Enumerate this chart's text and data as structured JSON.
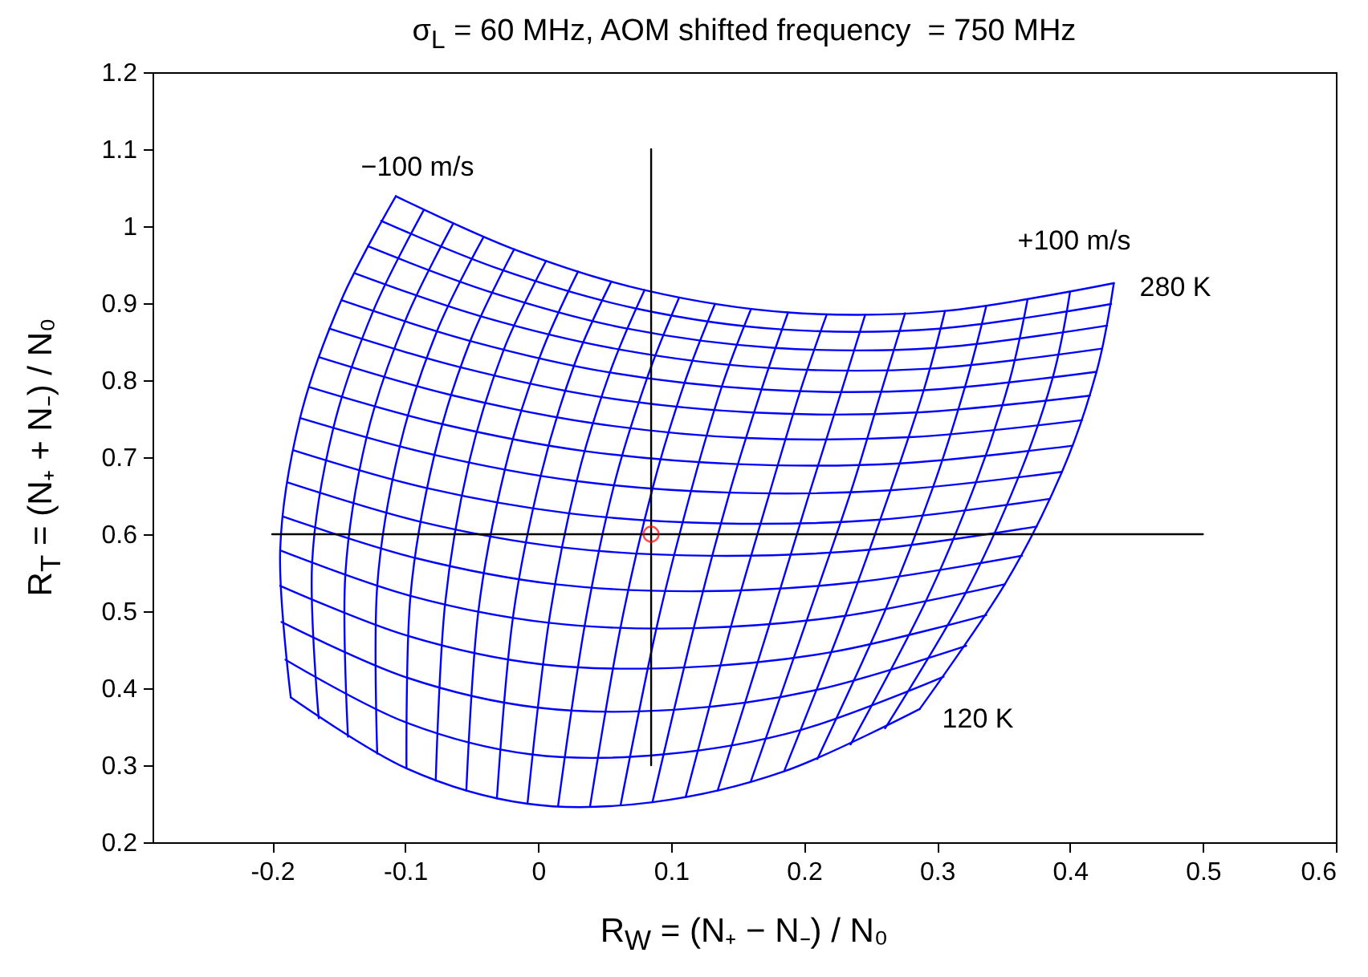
{
  "chart_data": {
    "type": "line",
    "title": "σ$_{L}$ = 60 MHz, AOM shifted frequency  = 750 MHz",
    "xlabel": "R$_{W}$ = (N₊ − N₋) / N₀",
    "ylabel": "R$_{T}$ = (N₊ + N₋) / N₀",
    "xlim": [
      -0.29,
      0.6
    ],
    "xticks": [
      -0.2,
      -0.1,
      0,
      0.1,
      0.2,
      0.3,
      0.4,
      0.5,
      0.6
    ],
    "ylim": [
      0.2,
      1.2
    ],
    "yticks": [
      0.2,
      0.3,
      0.4,
      0.5,
      0.6,
      0.7,
      0.8,
      0.9,
      1,
      1.1,
      1.2
    ],
    "annotations": [
      "−100 m/s",
      "+100 m/s",
      "280 K",
      "120 K"
    ],
    "series": [
      {
        "type": "line",
        "color": "#0000ff",
        "x": [
          -0.186,
          -0.099,
          -0.008,
          0.086,
          0.185,
          0.287
        ],
        "values": [
          0.388,
          0.296,
          0.25,
          0.252,
          0.292,
          0.373
        ]
      },
      {
        "type": "line",
        "color": "#0000ff",
        "x": [
          -0.19,
          -0.1,
          -0.005,
          0.094,
          0.198,
          0.305
        ],
        "values": [
          0.437,
          0.356,
          0.314,
          0.314,
          0.346,
          0.415
        ]
      },
      {
        "type": "line",
        "color": "#0000ff",
        "x": [
          -0.193,
          -0.099,
          -0.001,
          0.102,
          0.21,
          0.322
        ],
        "values": [
          0.486,
          0.414,
          0.375,
          0.372,
          0.398,
          0.455
        ]
      },
      {
        "type": "line",
        "color": "#0000ff",
        "x": [
          -0.194,
          -0.098,
          0.003,
          0.11,
          0.221,
          0.337
        ],
        "values": [
          0.533,
          0.468,
          0.431,
          0.427,
          0.447,
          0.495
        ]
      },
      {
        "type": "line",
        "color": "#0000ff",
        "x": [
          -0.194,
          -0.096,
          0.008,
          0.117,
          0.231,
          0.351
        ],
        "values": [
          0.579,
          0.52,
          0.485,
          0.478,
          0.494,
          0.535
        ]
      },
      {
        "type": "line",
        "color": "#0000ff",
        "x": [
          -0.192,
          -0.092,
          0.013,
          0.124,
          0.241,
          0.364
        ],
        "values": [
          0.623,
          0.569,
          0.535,
          0.526,
          0.538,
          0.572
        ]
      },
      {
        "type": "line",
        "color": "#0000ff",
        "x": [
          -0.188,
          -0.088,
          0.018,
          0.131,
          0.25,
          0.375
        ],
        "values": [
          0.667,
          0.616,
          0.583,
          0.572,
          0.58,
          0.61
        ]
      },
      {
        "type": "line",
        "color": "#0000ff",
        "x": [
          -0.184,
          -0.084,
          0.024,
          0.137,
          0.258,
          0.385
        ],
        "values": [
          0.709,
          0.66,
          0.627,
          0.614,
          0.619,
          0.646
        ]
      },
      {
        "type": "line",
        "color": "#0000ff",
        "x": [
          -0.179,
          -0.078,
          0.029,
          0.144,
          0.265,
          0.394
        ],
        "values": [
          0.751,
          0.703,
          0.669,
          0.654,
          0.657,
          0.681
        ]
      },
      {
        "type": "line",
        "color": "#0000ff",
        "x": [
          -0.172,
          -0.072,
          0.035,
          0.15,
          0.272,
          0.402
        ],
        "values": [
          0.791,
          0.743,
          0.708,
          0.691,
          0.692,
          0.715
        ]
      },
      {
        "type": "line",
        "color": "#0000ff",
        "x": [
          -0.165,
          -0.066,
          0.042,
          0.156,
          0.279,
          0.409
        ],
        "values": [
          0.83,
          0.781,
          0.744,
          0.725,
          0.726,
          0.748
        ]
      },
      {
        "type": "line",
        "color": "#0000ff",
        "x": [
          -0.157,
          -0.059,
          0.048,
          0.162,
          0.284,
          0.415
        ],
        "values": [
          0.867,
          0.817,
          0.778,
          0.758,
          0.758,
          0.78
        ]
      },
      {
        "type": "line",
        "color": "#0000ff",
        "x": [
          -0.148,
          -0.051,
          0.054,
          0.168,
          0.29,
          0.42
        ],
        "values": [
          0.904,
          0.851,
          0.81,
          0.788,
          0.787,
          0.811
        ]
      },
      {
        "type": "line",
        "color": "#0000ff",
        "x": [
          -0.138,
          -0.043,
          0.061,
          0.173,
          0.294,
          0.424
        ],
        "values": [
          0.939,
          0.883,
          0.84,
          0.816,
          0.815,
          0.841
        ]
      },
      {
        "type": "line",
        "color": "#0000ff",
        "x": [
          -0.128,
          -0.035,
          0.067,
          0.178,
          0.299,
          0.428
        ],
        "values": [
          0.974,
          0.914,
          0.867,
          0.842,
          0.842,
          0.871
        ]
      },
      {
        "type": "line",
        "color": "#0000ff",
        "x": [
          -0.118,
          -0.027,
          0.074,
          0.183,
          0.302,
          0.431
        ],
        "values": [
          1.007,
          0.943,
          0.893,
          0.866,
          0.867,
          0.899
        ]
      },
      {
        "type": "line",
        "color": "#0000ff",
        "x": [
          -0.107,
          -0.018,
          0.08,
          0.188,
          0.306,
          0.433
        ],
        "values": [
          1.039,
          0.97,
          0.917,
          0.888,
          0.89,
          0.926
        ]
      },
      {
        "type": "line",
        "color": "#0000ff",
        "x": [
          -0.186,
          -0.194,
          -0.179,
          -0.148,
          -0.107
        ],
        "values": [
          0.388,
          0.579,
          0.751,
          0.904,
          1.039
        ]
      },
      {
        "type": "line",
        "color": "#0000ff",
        "x": [
          -0.165,
          -0.17,
          -0.154,
          -0.124,
          -0.086
        ],
        "values": [
          0.361,
          0.562,
          0.738,
          0.89,
          1.021
        ]
      },
      {
        "type": "line",
        "color": "#0000ff",
        "x": [
          -0.143,
          -0.145,
          -0.129,
          -0.1,
          -0.064
        ],
        "values": [
          0.337,
          0.547,
          0.726,
          0.877,
          1.003
        ]
      },
      {
        "type": "line",
        "color": "#0000ff",
        "x": [
          -0.121,
          -0.121,
          -0.104,
          -0.076,
          -0.041
        ],
        "values": [
          0.315,
          0.533,
          0.714,
          0.864,
          0.986
        ]
      },
      {
        "type": "line",
        "color": "#0000ff",
        "x": [
          -0.099,
          -0.096,
          -0.078,
          -0.051,
          -0.018
        ],
        "values": [
          0.296,
          0.52,
          0.703,
          0.851,
          0.97
        ]
      },
      {
        "type": "line",
        "color": "#0000ff",
        "x": [
          -0.077,
          -0.07,
          -0.052,
          -0.026,
          0.006
        ],
        "values": [
          0.28,
          0.509,
          0.693,
          0.839,
          0.955
        ]
      },
      {
        "type": "line",
        "color": "#0000ff",
        "x": [
          -0.054,
          -0.045,
          -0.025,
          0.001,
          0.03
        ],
        "values": [
          0.267,
          0.499,
          0.684,
          0.829,
          0.941
        ]
      },
      {
        "type": "line",
        "color": "#0000ff",
        "x": [
          -0.031,
          -0.019,
          0.002,
          0.027,
          0.055
        ],
        "values": [
          0.257,
          0.491,
          0.676,
          0.819,
          0.928
        ]
      },
      {
        "type": "line",
        "color": "#0000ff",
        "x": [
          -0.008,
          0.008,
          0.029,
          0.054,
          0.08
        ],
        "values": [
          0.25,
          0.485,
          0.669,
          0.81,
          0.917
        ]
      },
      {
        "type": "line",
        "color": "#0000ff",
        "x": [
          0.015,
          0.035,
          0.057,
          0.082,
          0.106
        ],
        "values": [
          0.247,
          0.481,
          0.663,
          0.803,
          0.907
        ]
      },
      {
        "type": "line",
        "color": "#0000ff",
        "x": [
          0.039,
          0.062,
          0.086,
          0.11,
          0.133
        ],
        "values": [
          0.246,
          0.479,
          0.659,
          0.796,
          0.899
        ]
      },
      {
        "type": "line",
        "color": "#0000ff",
        "x": [
          0.062,
          0.089,
          0.115,
          0.138,
          0.16
        ],
        "values": [
          0.248,
          0.478,
          0.656,
          0.791,
          0.892
        ]
      },
      {
        "type": "line",
        "color": "#0000ff",
        "x": [
          0.086,
          0.117,
          0.144,
          0.168,
          0.188
        ],
        "values": [
          0.252,
          0.478,
          0.654,
          0.788,
          0.888
        ]
      },
      {
        "type": "line",
        "color": "#0000ff",
        "x": [
          0.111,
          0.145,
          0.174,
          0.197,
          0.217
        ],
        "values": [
          0.259,
          0.48,
          0.653,
          0.785,
          0.885
        ]
      },
      {
        "type": "line",
        "color": "#0000ff",
        "x": [
          0.135,
          0.174,
          0.204,
          0.228,
          0.246
        ],
        "values": [
          0.267,
          0.483,
          0.653,
          0.785,
          0.885
        ]
      },
      {
        "type": "line",
        "color": "#0000ff",
        "x": [
          0.16,
          0.202,
          0.235,
          0.258,
          0.276
        ],
        "values": [
          0.279,
          0.488,
          0.654,
          0.785,
          0.887
        ]
      },
      {
        "type": "line",
        "color": "#0000ff",
        "x": [
          0.185,
          0.231,
          0.265,
          0.29,
          0.306
        ],
        "values": [
          0.292,
          0.494,
          0.657,
          0.787,
          0.89
        ]
      },
      {
        "type": "line",
        "color": "#0000ff",
        "x": [
          0.21,
          0.261,
          0.297,
          0.321,
          0.337
        ],
        "values": [
          0.308,
          0.501,
          0.661,
          0.791,
          0.896
        ]
      },
      {
        "type": "line",
        "color": "#0000ff",
        "x": [
          0.235,
          0.291,
          0.329,
          0.354,
          0.368
        ],
        "values": [
          0.327,
          0.511,
          0.666,
          0.796,
          0.904
        ]
      },
      {
        "type": "line",
        "color": "#0000ff",
        "x": [
          0.261,
          0.321,
          0.361,
          0.387,
          0.4
        ],
        "values": [
          0.348,
          0.522,
          0.673,
          0.803,
          0.914
        ]
      },
      {
        "type": "line",
        "color": "#0000ff",
        "x": [
          0.287,
          0.351,
          0.394,
          0.42,
          0.433
        ],
        "values": [
          0.373,
          0.535,
          0.681,
          0.811,
          0.926
        ]
      },
      {
        "color": "#000000",
        "x": [
          0.085,
          0.085
        ],
        "values": [
          0.3,
          1.1
        ]
      },
      {
        "color": "#000000",
        "x": [
          -0.2,
          0.5
        ],
        "values": [
          0.6,
          0.6
        ]
      },
      {
        "type": "scatter",
        "color": "#ff0000",
        "marker": "circle",
        "x": [
          0.085
        ],
        "values": [
          0.6
        ]
      }
    ]
  }
}
